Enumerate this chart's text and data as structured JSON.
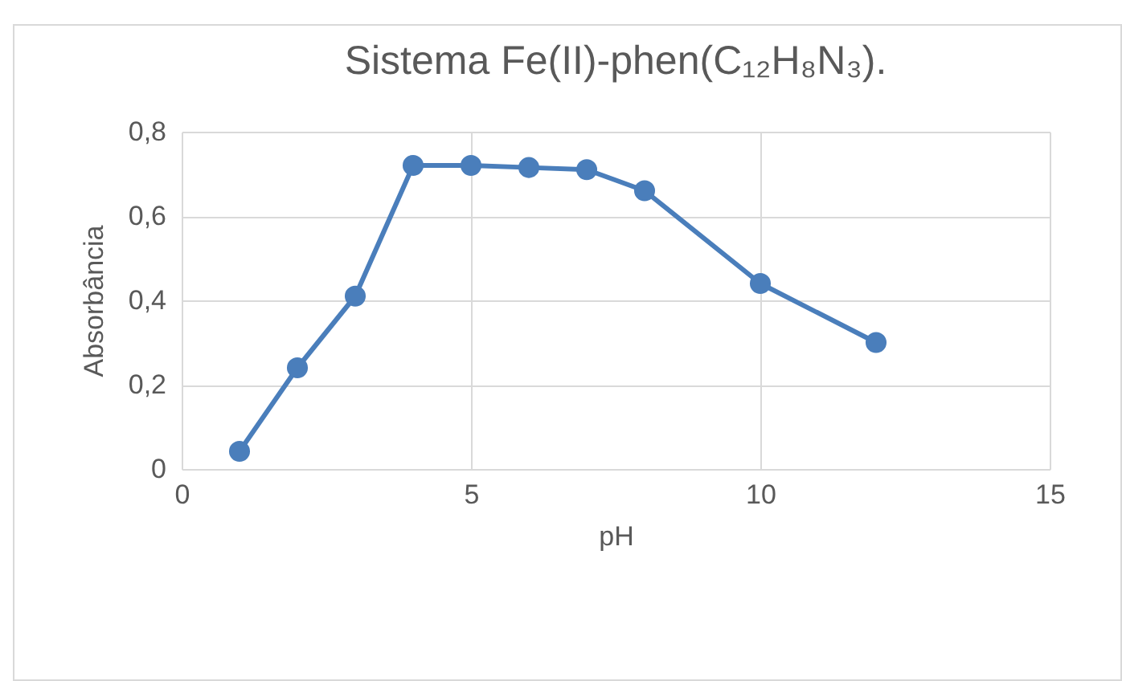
{
  "chart_data": {
    "type": "line",
    "title": "Sistema Fe(II)-phen(C₁₂H₈N₃).",
    "xlabel": "pH",
    "ylabel": "Absorbância",
    "x": [
      1,
      2,
      3,
      4,
      5,
      6,
      7,
      8,
      10,
      12
    ],
    "series": [
      {
        "color": "#4a7ebb",
        "values": [
          0.042,
          0.24,
          0.41,
          0.72,
          0.72,
          0.715,
          0.71,
          0.66,
          0.44,
          0.3
        ]
      }
    ],
    "xlim": [
      0,
      15
    ],
    "xticks": [
      0,
      5,
      10,
      15
    ],
    "ylim": [
      0,
      0.8
    ],
    "yticks": [
      0,
      {
        "value": 0.2,
        "label": "0,2"
      },
      {
        "value": 0.4,
        "label": "0,4"
      },
      {
        "value": 0.6,
        "label": "0,6"
      },
      {
        "value": 0.8,
        "label": "0,8"
      }
    ],
    "grid": true,
    "marker": "circle",
    "line_style": "solid"
  }
}
